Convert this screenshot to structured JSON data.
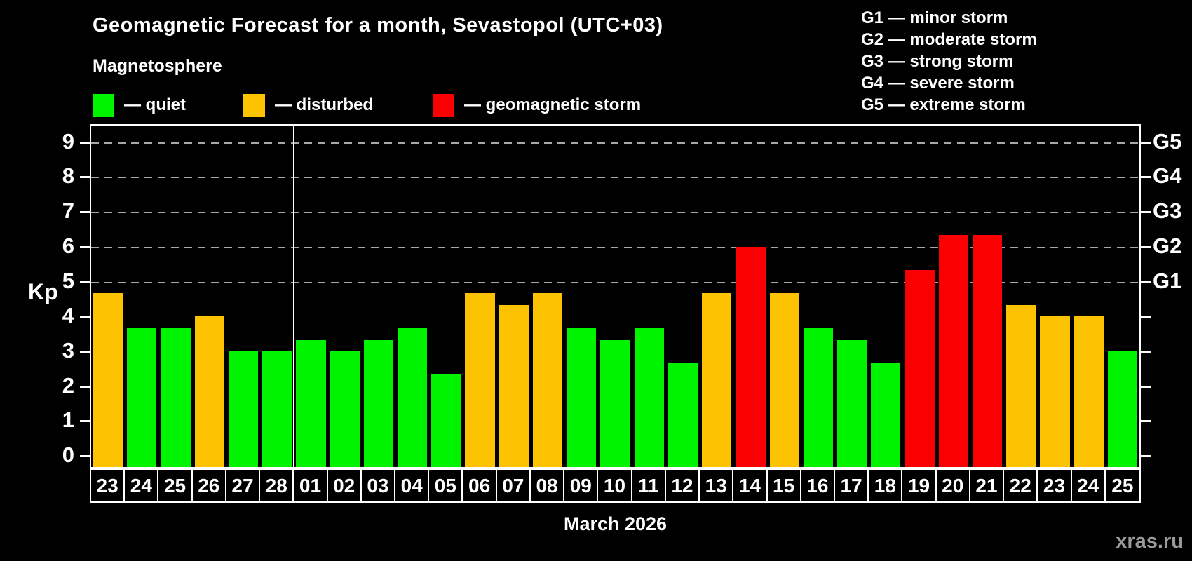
{
  "header": {
    "title": "Geomagnetic Forecast for a month, Sevastopol (UTC+03)",
    "subtitle": "Magnetosphere"
  },
  "legend": {
    "items": [
      {
        "key": "quiet",
        "label": "— quiet"
      },
      {
        "key": "disturbed",
        "label": "— disturbed"
      },
      {
        "key": "storm",
        "label": "— geomagnetic storm"
      }
    ]
  },
  "g_legend": [
    "G1 — minor storm",
    "G2 — moderate storm",
    "G3 — strong storm",
    "G4 — severe storm",
    "G5 — extreme storm"
  ],
  "axis": {
    "kp_label": "Kp",
    "y_ticks": [
      0,
      1,
      2,
      3,
      4,
      5,
      6,
      7,
      8,
      9
    ],
    "right_labels": [
      {
        "value": 5,
        "label": "G1"
      },
      {
        "value": 6,
        "label": "G2"
      },
      {
        "value": 7,
        "label": "G3"
      },
      {
        "value": 8,
        "label": "G4"
      },
      {
        "value": 9,
        "label": "G5"
      }
    ]
  },
  "chart_data": {
    "type": "bar",
    "title": "Geomagnetic Forecast for a month, Sevastopol (UTC+03)",
    "xlabel": "March 2026",
    "ylabel": "Kp",
    "ylim": [
      0,
      9
    ],
    "grid": "dashed horizontal lines at Kp 5,6,7,8,9 (G1–G5 levels)",
    "gridlines_at": [
      5,
      6,
      7,
      8,
      9
    ],
    "legend_position": "top",
    "month_boundary_after_index": 5,
    "categories": [
      "23",
      "24",
      "25",
      "26",
      "27",
      "28",
      "01",
      "02",
      "03",
      "04",
      "05",
      "06",
      "07",
      "08",
      "09",
      "10",
      "11",
      "12",
      "13",
      "14",
      "15",
      "16",
      "17",
      "18",
      "19",
      "20",
      "21",
      "22",
      "23",
      "24",
      "25"
    ],
    "values": [
      4.67,
      3.67,
      3.67,
      4.0,
      3.0,
      3.0,
      3.33,
      3.0,
      3.33,
      3.67,
      2.33,
      4.67,
      4.33,
      4.67,
      3.67,
      3.33,
      3.67,
      2.67,
      4.67,
      6.0,
      4.67,
      3.67,
      3.33,
      2.67,
      5.33,
      6.33,
      6.33,
      4.33,
      4.0,
      4.0,
      3.0
    ],
    "statuses": [
      "disturbed",
      "quiet",
      "quiet",
      "disturbed",
      "quiet",
      "quiet",
      "quiet",
      "quiet",
      "quiet",
      "quiet",
      "quiet",
      "disturbed",
      "disturbed",
      "disturbed",
      "quiet",
      "quiet",
      "quiet",
      "quiet",
      "disturbed",
      "storm",
      "disturbed",
      "quiet",
      "quiet",
      "quiet",
      "storm",
      "storm",
      "storm",
      "disturbed",
      "disturbed",
      "disturbed",
      "quiet"
    ]
  },
  "footer": {
    "month_label": "March 2026",
    "watermark": "xras.ru"
  },
  "colors": {
    "quiet": "#00f400",
    "disturbed": "#fdc200",
    "storm": "#fa0000",
    "grid": "#a8a8a8",
    "frame": "#ffffff",
    "background": "#000000",
    "text": "#ffffff",
    "watermark": "#9a9a9a"
  }
}
